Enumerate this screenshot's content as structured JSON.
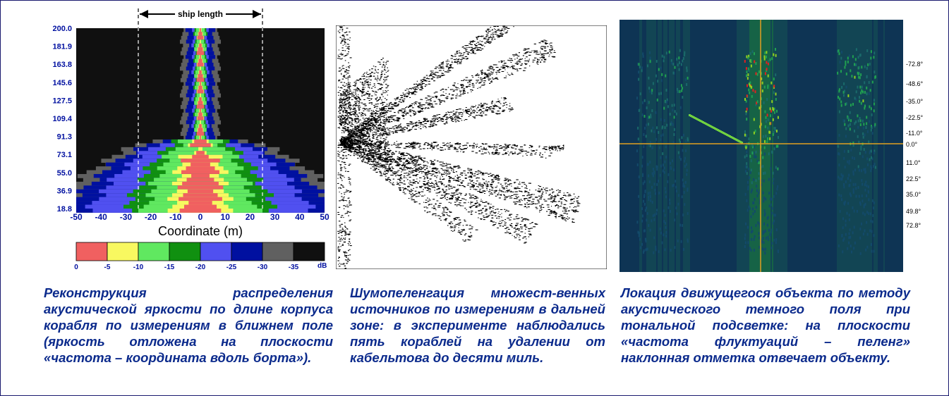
{
  "chart_data": [
    {
      "type": "heatmap",
      "title": "",
      "annotation": "ship length",
      "xlabel": "Coordinate (m)",
      "ylabel": "",
      "x_ticks": [
        "-50",
        "-40",
        "-30",
        "-20",
        "-10",
        "0",
        "10",
        "20",
        "30",
        "40",
        "50"
      ],
      "y_ticks": [
        "200.0",
        "181.9",
        "163.8",
        "145.6",
        "127.5",
        "109.4",
        "91.3",
        "73.1",
        "55.0",
        "36.9",
        "18.8"
      ],
      "xlim": [
        -50,
        50
      ],
      "ylim": [
        18.8,
        200.0
      ],
      "ship_length_bounds": [
        -25,
        25
      ],
      "colorbar": {
        "labels": [
          "0",
          "-5",
          "-10",
          "-15",
          "-20",
          "-25",
          "-30",
          "-35"
        ],
        "unit": "dB",
        "colors": [
          "#f06060",
          "#f8f860",
          "#60e860",
          "#109010",
          "#5050f0",
          "#0010a0",
          "#606060",
          "#101010"
        ]
      }
    },
    {
      "type": "scatter",
      "title": "",
      "xlabel": "",
      "ylabel": "",
      "description_colors": {
        "foreground": "#000000",
        "background": "#ffffff"
      }
    },
    {
      "type": "heatmap",
      "title": "",
      "xlabel": "",
      "ylabel": "",
      "y_ticks": [
        "-72.8°",
        "-48.6°",
        "-35.0°",
        "-22.5°",
        "-11.0°",
        "0.0°",
        "11.0°",
        "22.5°",
        "35.0°",
        "49.8°",
        "72.8°"
      ],
      "crosshair_color": "#e0a020",
      "background_color": "#0a1a3a"
    }
  ],
  "captions": {
    "left": "Реконструкция распределения акустической яркости по длине корпуса корабля по измерениям в ближнем поле (яркость отложена на плоскости «частота – координата вдоль борта»).",
    "middle": "Шумопеленгация множест-венных источников по измерениям в дальней зоне: в эксперименте наблюдались пять кораблей на удалении от кабельтова до десяти миль.",
    "right": "Локация движущегося объекта по методу акустического темного поля при тональной подсветке: на плоскости «частота флуктуаций – пеленг» наклонная отметка отвечает объекту."
  }
}
